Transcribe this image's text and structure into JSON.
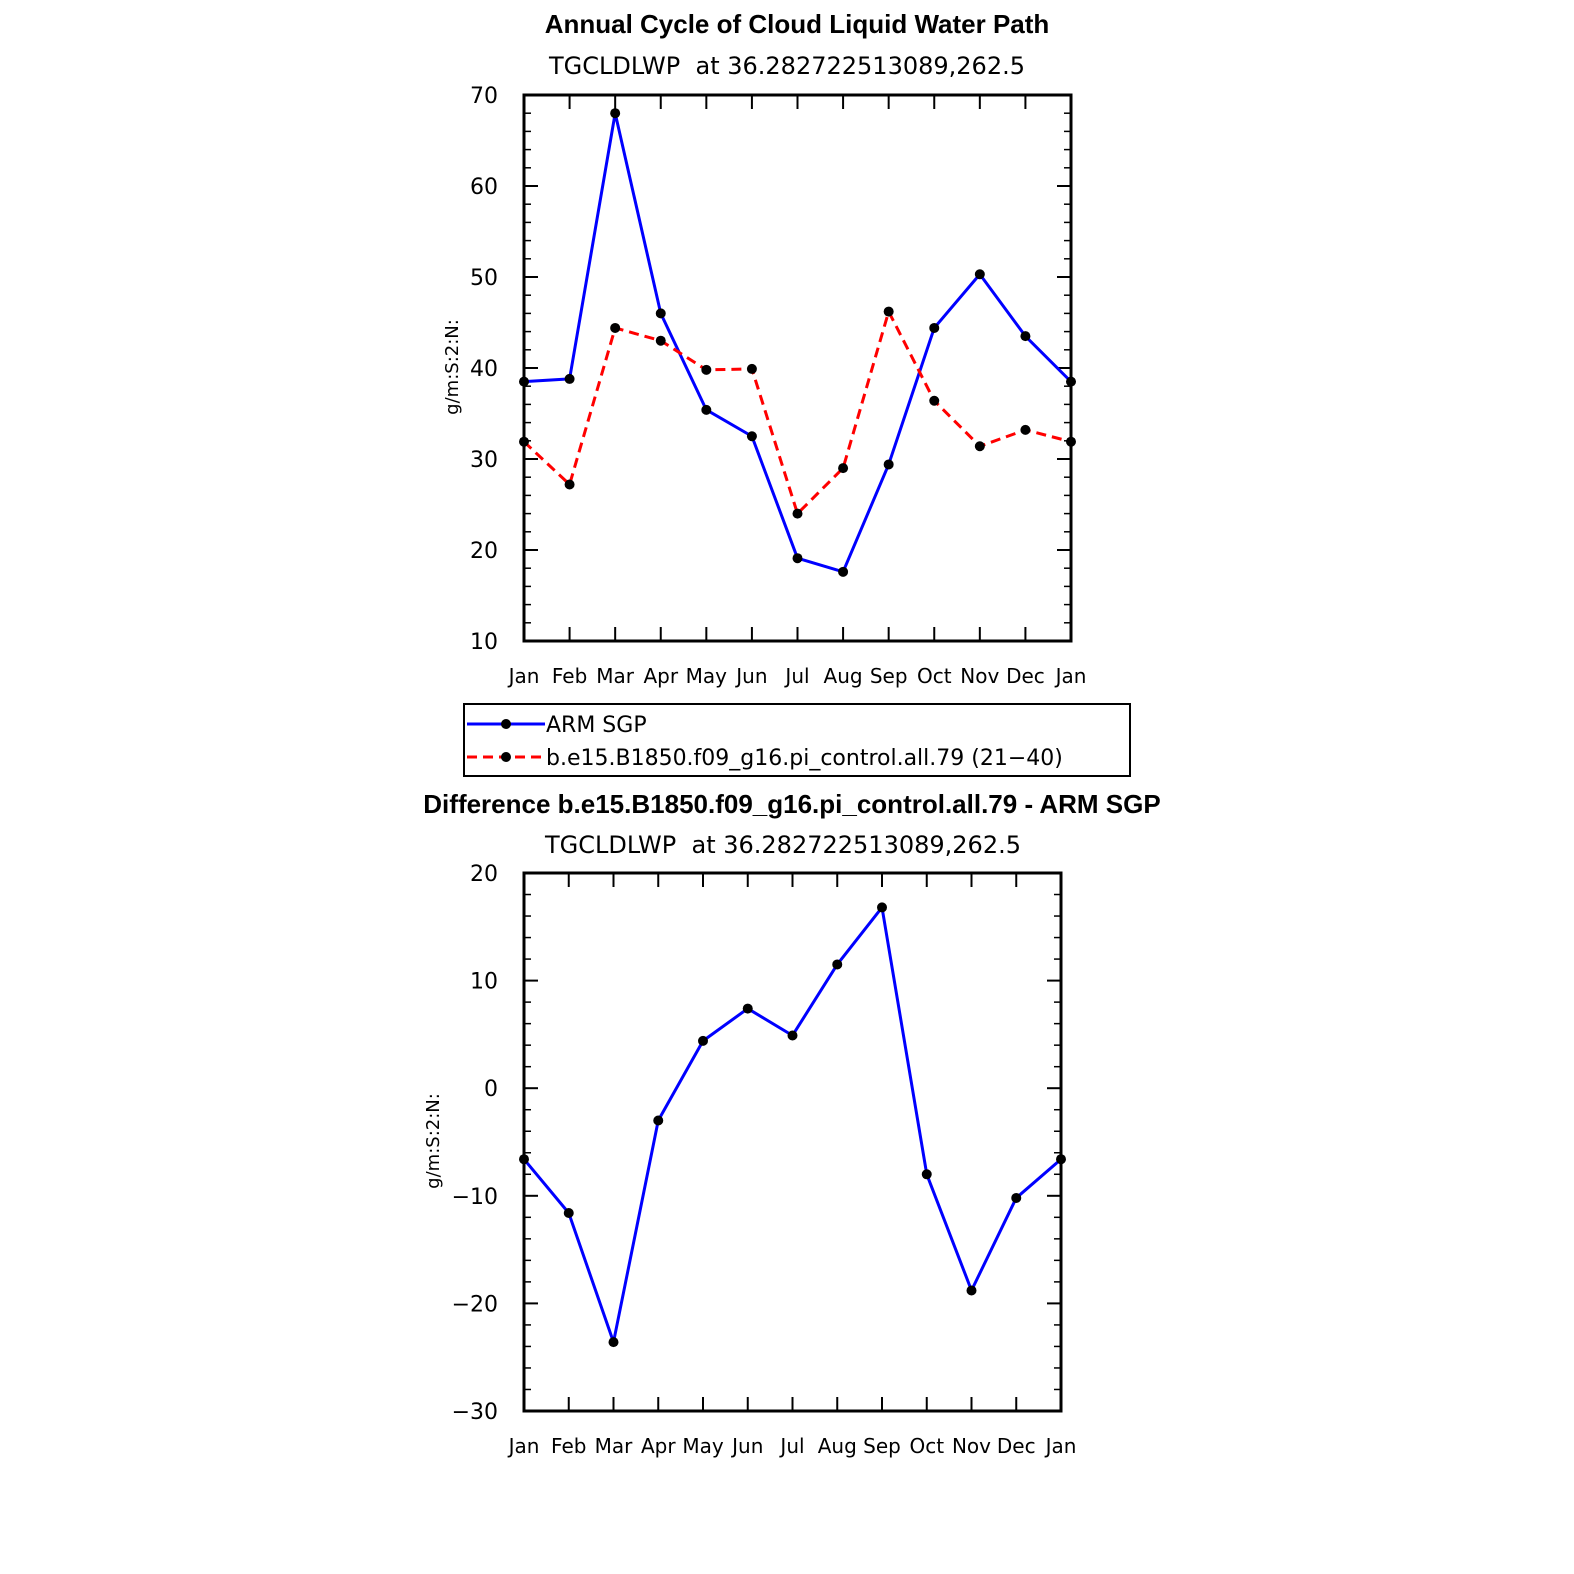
{
  "chart_data": [
    {
      "type": "line",
      "title": "Annual Cycle of Cloud Liquid Water Path",
      "subtitle": "TGCLDLWP  at 36.282722513089,262.5",
      "ylabel": "g/m:S:2:N:",
      "xlabel": "",
      "categories": [
        "Jan",
        "Feb",
        "Mar",
        "Apr",
        "May",
        "Jun",
        "Jul",
        "Aug",
        "Sep",
        "Oct",
        "Nov",
        "Dec",
        "Jan"
      ],
      "ylim": [
        10,
        70
      ],
      "yticks": [
        10,
        20,
        30,
        40,
        50,
        60,
        70
      ],
      "ytick_labels": [
        "10",
        "20",
        "30",
        "40",
        "50",
        "60",
        "70"
      ],
      "series": [
        {
          "name": "ARM SGP",
          "color": "#0000ff",
          "dash": "solid",
          "values": [
            38.5,
            38.8,
            68.0,
            46.0,
            35.4,
            32.5,
            19.1,
            17.6,
            29.4,
            44.4,
            50.3,
            43.5,
            38.5
          ]
        },
        {
          "name": "b.e15.B1850.f09_g16.pi_control.all.79 (21−40)",
          "color": "#ff0000",
          "dash": "dashed",
          "values": [
            31.9,
            27.2,
            44.4,
            43.0,
            39.8,
            39.9,
            24.0,
            29.0,
            46.2,
            36.4,
            31.4,
            33.2,
            31.9
          ]
        }
      ],
      "legend": "below-plot"
    },
    {
      "type": "line",
      "title": "Difference b.e15.B1850.f09_g16.pi_control.all.79 - ARM SGP",
      "subtitle": "TGCLDLWP  at 36.282722513089,262.5",
      "ylabel": "g/m:S:2:N:",
      "xlabel": "",
      "categories": [
        "Jan",
        "Feb",
        "Mar",
        "Apr",
        "May",
        "Jun",
        "Jul",
        "Aug",
        "Sep",
        "Oct",
        "Nov",
        "Dec",
        "Jan"
      ],
      "ylim": [
        -30,
        20
      ],
      "yticks": [
        -30,
        -20,
        -10,
        0,
        10,
        20
      ],
      "ytick_labels": [
        "−30",
        "−20",
        "−10",
        "0",
        "10",
        "20"
      ],
      "series": [
        {
          "name": "Difference",
          "color": "#0000ff",
          "dash": "solid",
          "values": [
            -6.6,
            -11.6,
            -23.6,
            -3.0,
            4.4,
            7.4,
            4.9,
            11.5,
            16.8,
            -8.0,
            -18.8,
            -10.2,
            -6.6
          ]
        }
      ]
    }
  ]
}
